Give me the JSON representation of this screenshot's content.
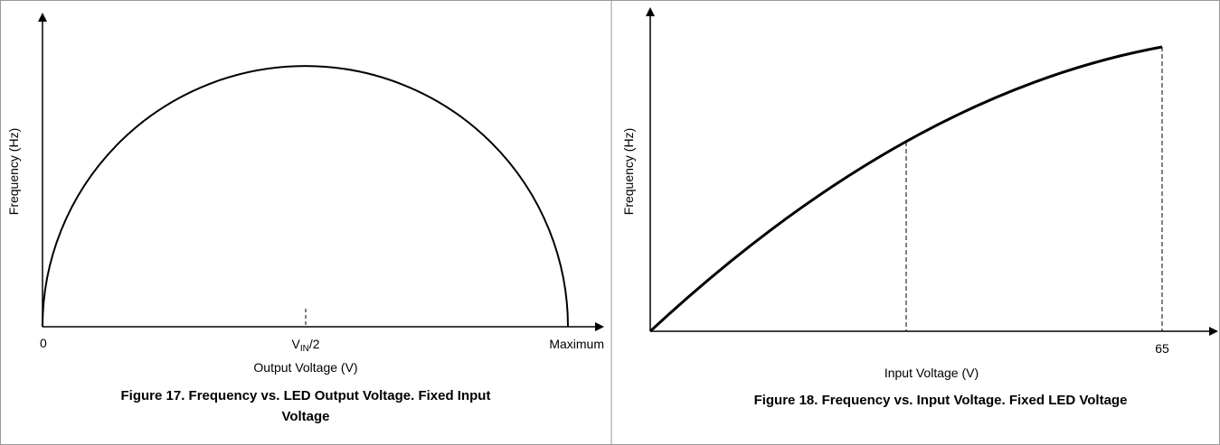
{
  "figures": [
    {
      "y_axis_label": "Frequency (Hz)",
      "x_labels": {
        "start": "0",
        "middle": {
          "main": "V",
          "subscript": "IN",
          "suffix": "/2"
        },
        "end": "Maximum"
      },
      "x_axis_label": "Output Voltage (V)",
      "caption": [
        "Figure 17. Frequency vs. LED Output Voltage. Fixed Input",
        "Voltage"
      ]
    },
    {
      "y_axis_label": "Frequency (Hz)",
      "x_labels": {
        "end": "65"
      },
      "x_axis_label": "Input Voltage (V)",
      "caption": [
        "Figure 18. Frequency vs. Input Voltage. Fixed LED Voltage"
      ]
    }
  ]
}
